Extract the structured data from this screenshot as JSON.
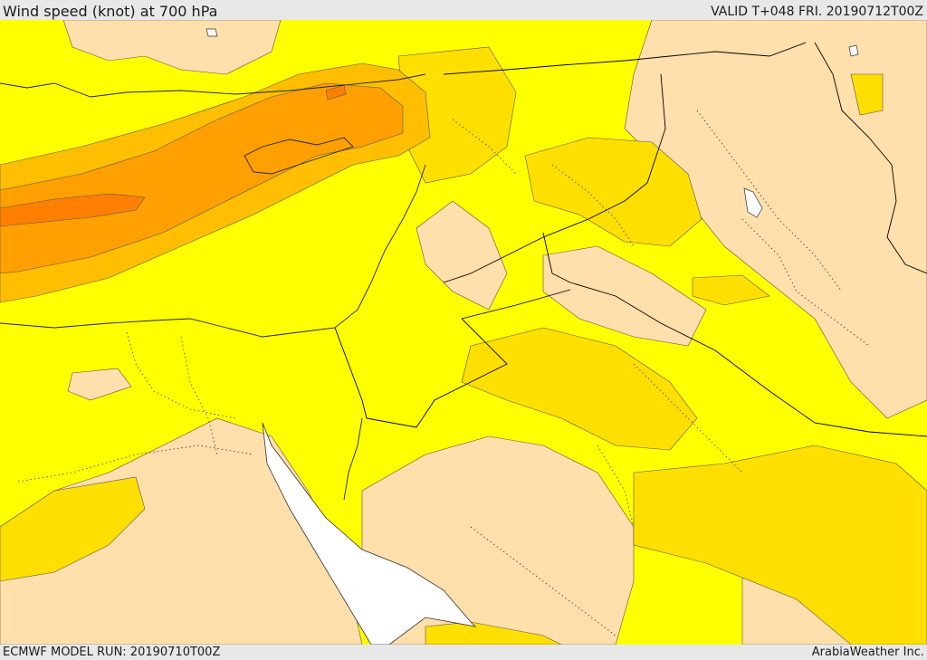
{
  "header": {
    "title": "Wind speed (knot) at 700 hPa",
    "valid": "VALID T+048 FRI. 20190712T00Z"
  },
  "footer": {
    "model_run": "ECMWF MODEL RUN: 20190710T00Z",
    "credit": "ArabiaWeather Inc."
  },
  "colors": {
    "background_field": "#ffff00",
    "light_zone": "#ffdfab",
    "medium_zone": "#ffdf00",
    "strong_zone": "#ffbf00",
    "stronger_zone": "#ffa000",
    "core_zone": "#ff8000",
    "water_no_data": "#ffffff",
    "borders": "#000000"
  }
}
